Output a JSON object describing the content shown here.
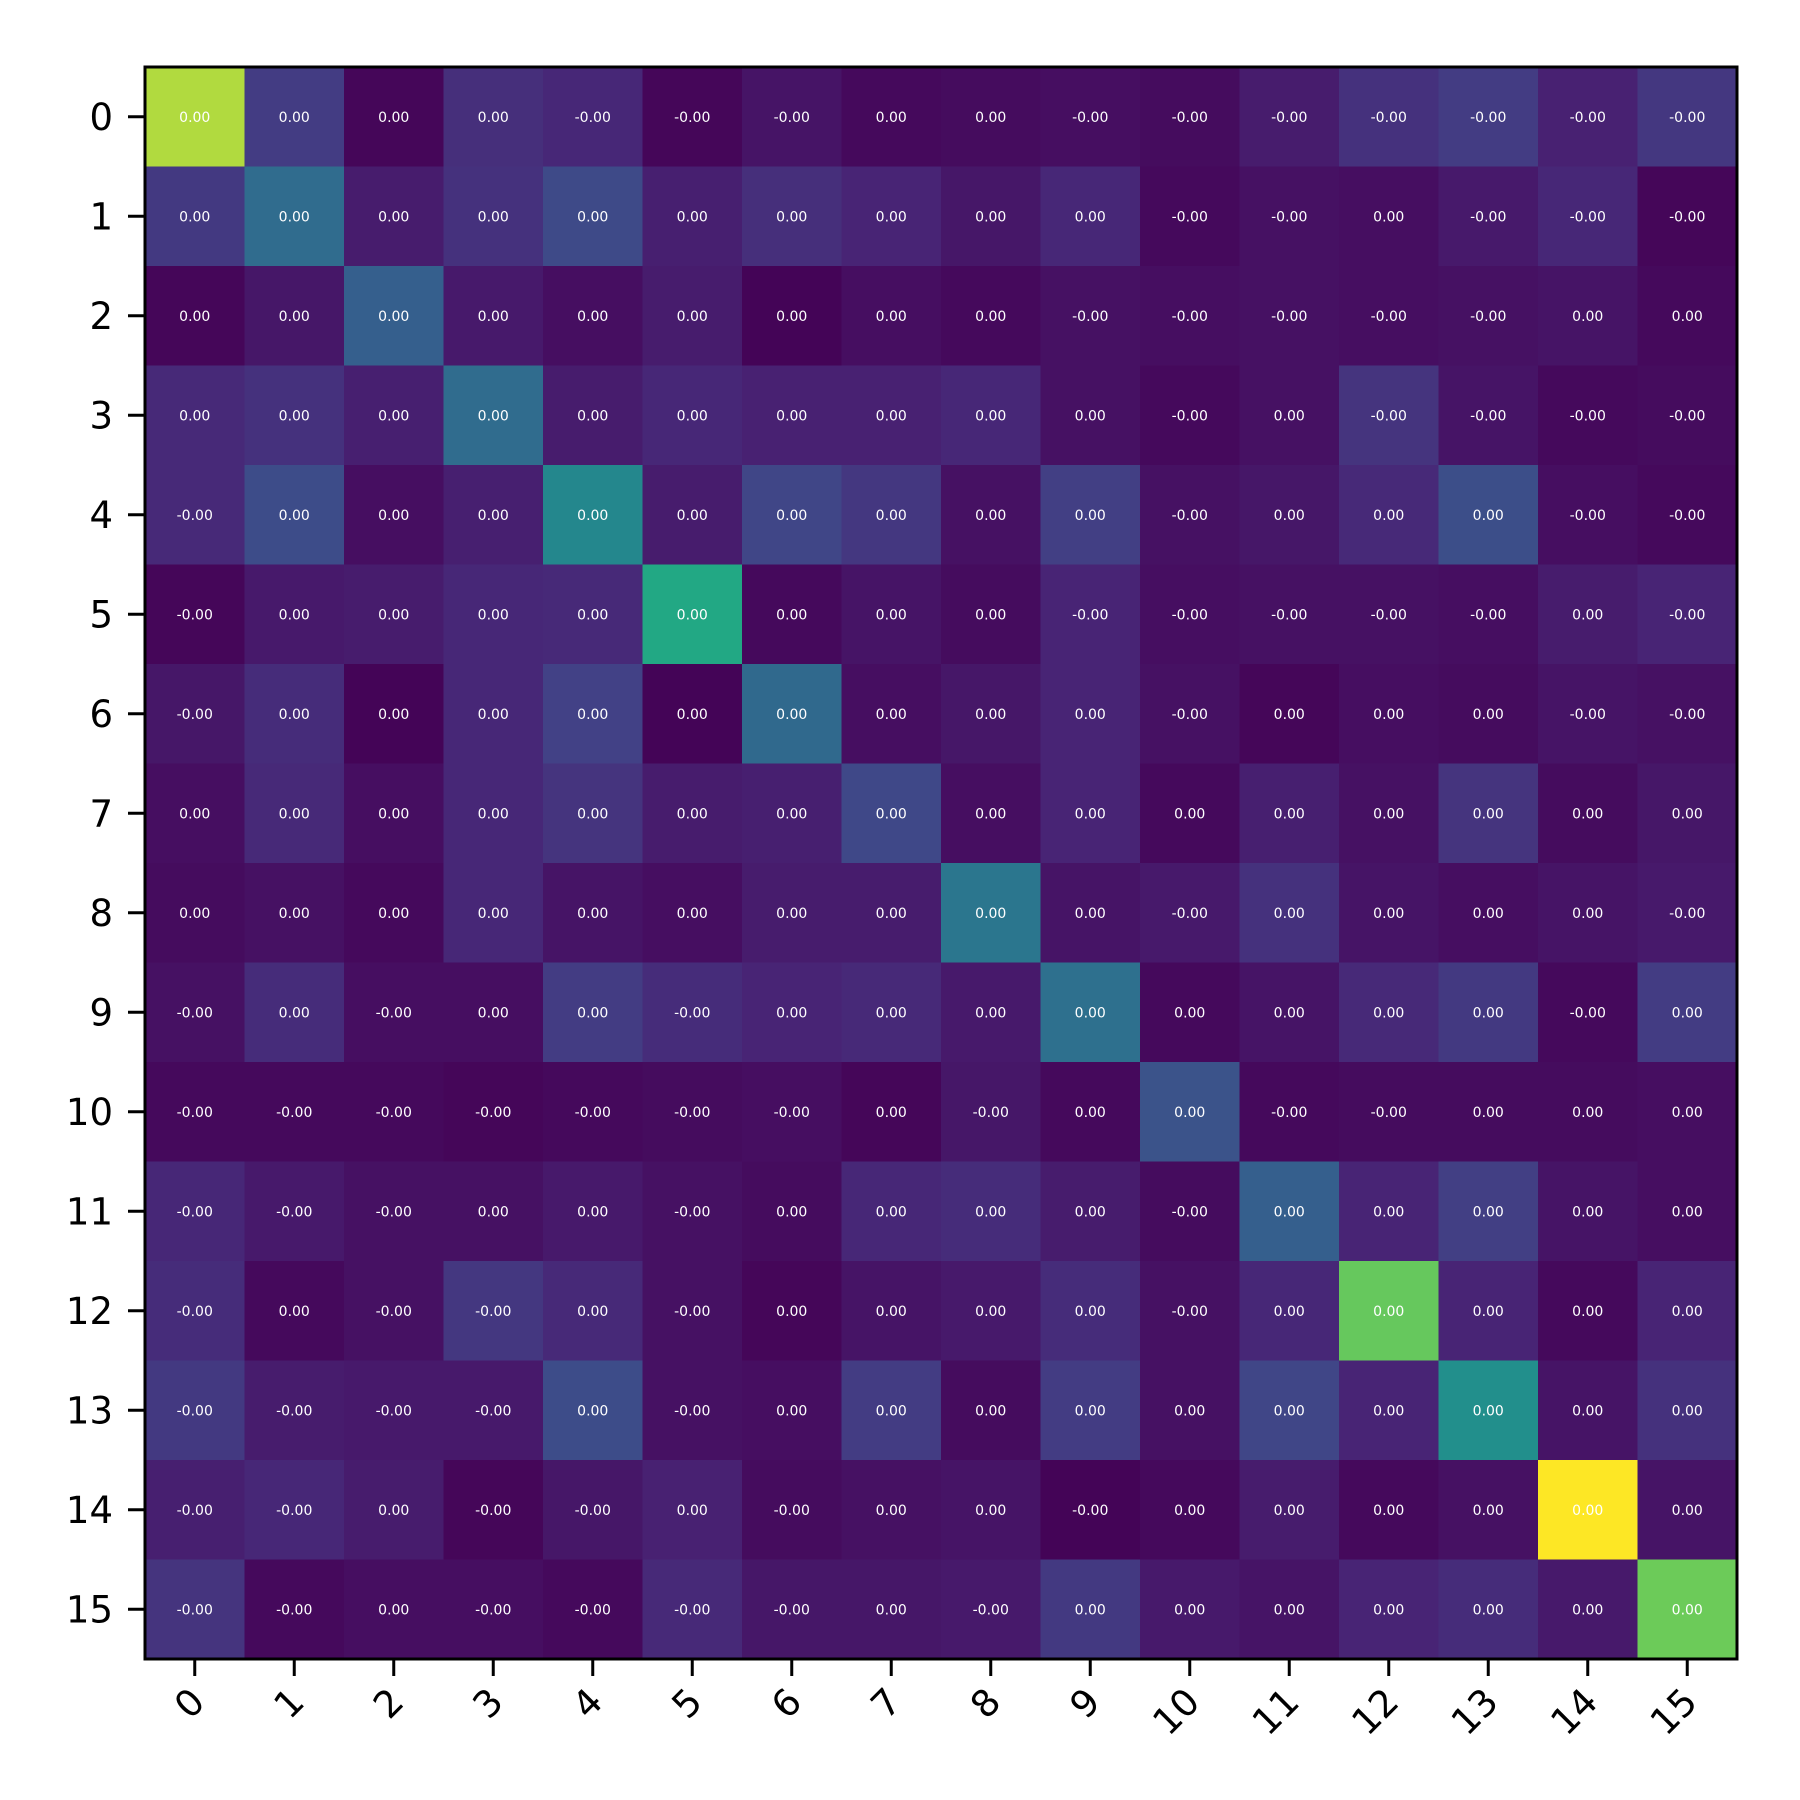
{
  "chart_data": {
    "type": "heatmap",
    "colormap": "viridis",
    "xlabel": "",
    "ylabel": "",
    "x_tick_labels": [
      "0",
      "1",
      "2",
      "3",
      "4",
      "5",
      "6",
      "7",
      "8",
      "9",
      "10",
      "11",
      "12",
      "13",
      "14",
      "15"
    ],
    "y_tick_labels": [
      "0",
      "1",
      "2",
      "3",
      "4",
      "5",
      "6",
      "7",
      "8",
      "9",
      "10",
      "11",
      "12",
      "13",
      "14",
      "15"
    ],
    "cell_labels": [
      [
        "0.00",
        "0.00",
        "0.00",
        "0.00",
        "-0.00",
        "-0.00",
        "-0.00",
        "0.00",
        "0.00",
        "-0.00",
        "-0.00",
        "-0.00",
        "-0.00",
        "-0.00",
        "-0.00",
        "-0.00"
      ],
      [
        "0.00",
        "0.00",
        "0.00",
        "0.00",
        "0.00",
        "0.00",
        "0.00",
        "0.00",
        "0.00",
        "0.00",
        "-0.00",
        "-0.00",
        "0.00",
        "-0.00",
        "-0.00",
        "-0.00"
      ],
      [
        "0.00",
        "0.00",
        "0.00",
        "0.00",
        "0.00",
        "0.00",
        "0.00",
        "0.00",
        "0.00",
        "-0.00",
        "-0.00",
        "-0.00",
        "-0.00",
        "-0.00",
        "0.00",
        "0.00"
      ],
      [
        "0.00",
        "0.00",
        "0.00",
        "0.00",
        "0.00",
        "0.00",
        "0.00",
        "0.00",
        "0.00",
        "0.00",
        "-0.00",
        "0.00",
        "-0.00",
        "-0.00",
        "-0.00",
        "-0.00"
      ],
      [
        "-0.00",
        "0.00",
        "0.00",
        "0.00",
        "0.00",
        "0.00",
        "0.00",
        "0.00",
        "0.00",
        "0.00",
        "-0.00",
        "0.00",
        "0.00",
        "0.00",
        "-0.00",
        "-0.00"
      ],
      [
        "-0.00",
        "0.00",
        "0.00",
        "0.00",
        "0.00",
        "0.00",
        "0.00",
        "0.00",
        "0.00",
        "-0.00",
        "-0.00",
        "-0.00",
        "-0.00",
        "-0.00",
        "0.00",
        "-0.00"
      ],
      [
        "-0.00",
        "0.00",
        "0.00",
        "0.00",
        "0.00",
        "0.00",
        "0.00",
        "0.00",
        "0.00",
        "0.00",
        "-0.00",
        "0.00",
        "0.00",
        "0.00",
        "-0.00",
        "-0.00"
      ],
      [
        "0.00",
        "0.00",
        "0.00",
        "0.00",
        "0.00",
        "0.00",
        "0.00",
        "0.00",
        "0.00",
        "0.00",
        "0.00",
        "0.00",
        "0.00",
        "0.00",
        "0.00",
        "0.00"
      ],
      [
        "0.00",
        "0.00",
        "0.00",
        "0.00",
        "0.00",
        "0.00",
        "0.00",
        "0.00",
        "0.00",
        "0.00",
        "-0.00",
        "0.00",
        "0.00",
        "0.00",
        "0.00",
        "-0.00"
      ],
      [
        "-0.00",
        "0.00",
        "-0.00",
        "0.00",
        "0.00",
        "-0.00",
        "0.00",
        "0.00",
        "0.00",
        "0.00",
        "0.00",
        "0.00",
        "0.00",
        "0.00",
        "-0.00",
        "0.00"
      ],
      [
        "-0.00",
        "-0.00",
        "-0.00",
        "-0.00",
        "-0.00",
        "-0.00",
        "-0.00",
        "0.00",
        "-0.00",
        "0.00",
        "0.00",
        "-0.00",
        "-0.00",
        "0.00",
        "0.00",
        "0.00"
      ],
      [
        "-0.00",
        "-0.00",
        "-0.00",
        "0.00",
        "0.00",
        "-0.00",
        "0.00",
        "0.00",
        "0.00",
        "0.00",
        "-0.00",
        "0.00",
        "0.00",
        "0.00",
        "0.00",
        "0.00"
      ],
      [
        "-0.00",
        "0.00",
        "-0.00",
        "-0.00",
        "0.00",
        "-0.00",
        "0.00",
        "0.00",
        "0.00",
        "0.00",
        "-0.00",
        "0.00",
        "0.00",
        "0.00",
        "0.00",
        "0.00"
      ],
      [
        "-0.00",
        "-0.00",
        "-0.00",
        "-0.00",
        "0.00",
        "-0.00",
        "0.00",
        "0.00",
        "0.00",
        "0.00",
        "0.00",
        "0.00",
        "0.00",
        "0.00",
        "0.00",
        "0.00"
      ],
      [
        "-0.00",
        "-0.00",
        "0.00",
        "-0.00",
        "-0.00",
        "0.00",
        "-0.00",
        "0.00",
        "0.00",
        "-0.00",
        "0.00",
        "0.00",
        "0.00",
        "0.00",
        "0.00",
        "0.00"
      ],
      [
        "-0.00",
        "-0.00",
        "0.00",
        "-0.00",
        "-0.00",
        "-0.00",
        "-0.00",
        "0.00",
        "-0.00",
        "0.00",
        "0.00",
        "0.00",
        "0.00",
        "0.00",
        "0.00",
        "0.00"
      ]
    ],
    "relative_intensity": [
      [
        0.93,
        0.22,
        0.02,
        0.17,
        0.14,
        0.02,
        0.07,
        0.03,
        0.04,
        0.05,
        0.04,
        0.1,
        0.18,
        0.22,
        0.12,
        0.2
      ],
      [
        0.21,
        0.44,
        0.1,
        0.18,
        0.28,
        0.11,
        0.17,
        0.13,
        0.08,
        0.14,
        0.03,
        0.06,
        0.05,
        0.09,
        0.14,
        0.02
      ],
      [
        0.02,
        0.08,
        0.38,
        0.09,
        0.05,
        0.1,
        0.01,
        0.05,
        0.03,
        0.06,
        0.05,
        0.06,
        0.05,
        0.06,
        0.07,
        0.03
      ],
      [
        0.15,
        0.18,
        0.11,
        0.44,
        0.1,
        0.14,
        0.12,
        0.12,
        0.14,
        0.06,
        0.03,
        0.06,
        0.19,
        0.07,
        0.03,
        0.04
      ],
      [
        0.15,
        0.29,
        0.05,
        0.11,
        0.58,
        0.1,
        0.26,
        0.2,
        0.06,
        0.23,
        0.06,
        0.08,
        0.15,
        0.3,
        0.05,
        0.03
      ],
      [
        0.02,
        0.09,
        0.1,
        0.14,
        0.15,
        0.75,
        0.03,
        0.07,
        0.04,
        0.13,
        0.05,
        0.06,
        0.06,
        0.05,
        0.1,
        0.13
      ],
      [
        0.08,
        0.16,
        0.01,
        0.14,
        0.24,
        0.01,
        0.43,
        0.05,
        0.08,
        0.13,
        0.06,
        0.02,
        0.05,
        0.04,
        0.07,
        0.06
      ],
      [
        0.05,
        0.15,
        0.05,
        0.14,
        0.19,
        0.1,
        0.11,
        0.27,
        0.05,
        0.13,
        0.03,
        0.11,
        0.06,
        0.19,
        0.04,
        0.08
      ],
      [
        0.04,
        0.06,
        0.03,
        0.14,
        0.07,
        0.05,
        0.1,
        0.1,
        0.49,
        0.07,
        0.09,
        0.18,
        0.07,
        0.05,
        0.07,
        0.09
      ],
      [
        0.06,
        0.16,
        0.05,
        0.05,
        0.22,
        0.16,
        0.13,
        0.15,
        0.09,
        0.46,
        0.03,
        0.07,
        0.15,
        0.21,
        0.03,
        0.22
      ],
      [
        0.03,
        0.03,
        0.03,
        0.02,
        0.03,
        0.04,
        0.05,
        0.02,
        0.08,
        0.03,
        0.32,
        0.03,
        0.04,
        0.04,
        0.04,
        0.05
      ],
      [
        0.14,
        0.09,
        0.06,
        0.06,
        0.09,
        0.06,
        0.04,
        0.14,
        0.16,
        0.1,
        0.04,
        0.38,
        0.13,
        0.23,
        0.07,
        0.05
      ],
      [
        0.16,
        0.03,
        0.06,
        0.2,
        0.15,
        0.06,
        0.02,
        0.07,
        0.09,
        0.16,
        0.06,
        0.14,
        0.85,
        0.13,
        0.03,
        0.13
      ],
      [
        0.21,
        0.1,
        0.09,
        0.09,
        0.29,
        0.06,
        0.05,
        0.22,
        0.04,
        0.22,
        0.06,
        0.26,
        0.13,
        0.62,
        0.07,
        0.18
      ],
      [
        0.11,
        0.14,
        0.1,
        0.02,
        0.08,
        0.12,
        0.04,
        0.06,
        0.07,
        0.01,
        0.03,
        0.1,
        0.03,
        0.06,
        1.0,
        0.07
      ],
      [
        0.19,
        0.03,
        0.05,
        0.05,
        0.03,
        0.15,
        0.08,
        0.08,
        0.09,
        0.21,
        0.09,
        0.07,
        0.13,
        0.16,
        0.09,
        0.86
      ]
    ],
    "grid": false
  }
}
